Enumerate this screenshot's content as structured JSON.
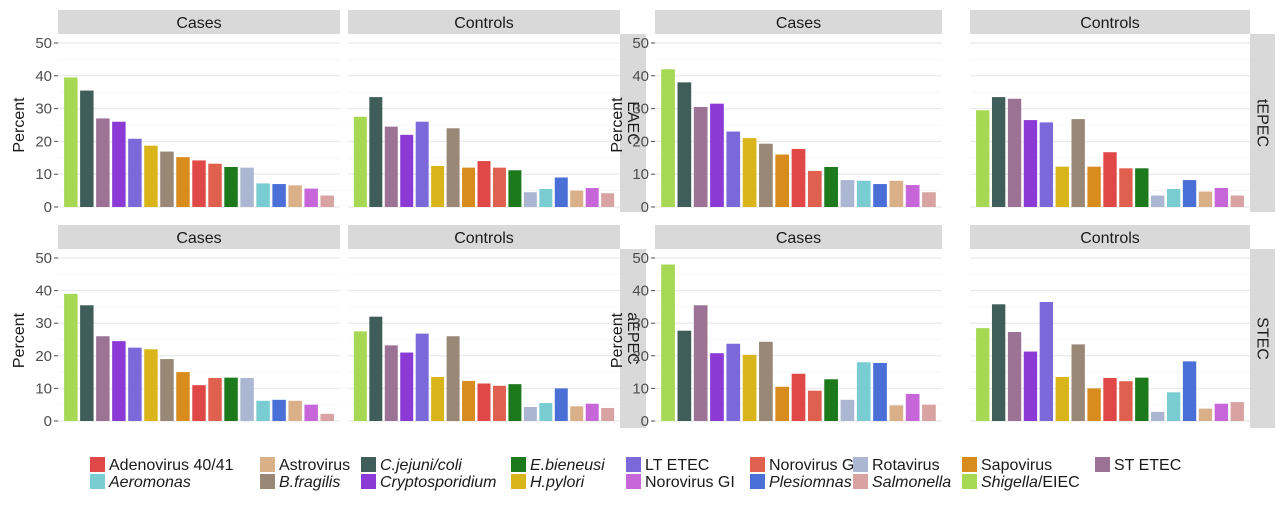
{
  "chart_data": {
    "type": "bar",
    "ylabel": "Percent",
    "ylim": [
      0,
      52
    ],
    "yticks": [
      0,
      10,
      20,
      30,
      40,
      50
    ],
    "grid": true,
    "legend_position": "bottom",
    "panel_columns": [
      "Cases",
      "Controls"
    ],
    "pathogens": [
      {
        "name": "Shigella/EIEC",
        "parts": [
          {
            "text": "Shigella",
            "italic": true
          },
          {
            "text": "/EIEC",
            "italic": false
          }
        ],
        "color": "#a6d854"
      },
      {
        "name": "C.jejuni/coli",
        "parts": [
          {
            "text": "C.jejuni/coli",
            "italic": true
          }
        ],
        "color": "#3f5e5a"
      },
      {
        "name": "ST ETEC",
        "parts": [
          {
            "text": "ST ETEC",
            "italic": false
          }
        ],
        "color": "#9c7295"
      },
      {
        "name": "Cryptosporidium",
        "parts": [
          {
            "text": "Cryptosporidium",
            "italic": true
          }
        ],
        "color": "#8b3ad6"
      },
      {
        "name": "LT ETEC",
        "parts": [
          {
            "text": "LT ETEC",
            "italic": false
          }
        ],
        "color": "#7b68d9"
      },
      {
        "name": "H.pylori",
        "parts": [
          {
            "text": "H.pylori",
            "italic": true
          }
        ],
        "color": "#d9b51b"
      },
      {
        "name": "B.fragilis",
        "parts": [
          {
            "text": "B.fragilis",
            "italic": true
          }
        ],
        "color": "#998876"
      },
      {
        "name": "Sapovirus",
        "parts": [
          {
            "text": "Sapovirus",
            "italic": false
          }
        ],
        "color": "#d98c1e"
      },
      {
        "name": "Adenovirus 40/41",
        "parts": [
          {
            "text": "Adenovirus 40/41",
            "italic": false
          }
        ],
        "color": "#e04848"
      },
      {
        "name": "Norovirus GII",
        "parts": [
          {
            "text": "Norovirus GII",
            "italic": false
          }
        ],
        "color": "#e06050"
      },
      {
        "name": "E.bieneusi",
        "parts": [
          {
            "text": "E.bieneusi",
            "italic": true
          }
        ],
        "color": "#1c7a1c"
      },
      {
        "name": "Rotavirus",
        "parts": [
          {
            "text": "Rotavirus",
            "italic": false
          }
        ],
        "color": "#aab6d2"
      },
      {
        "name": "Aeromonas",
        "parts": [
          {
            "text": "Aeromonas",
            "italic": true
          }
        ],
        "color": "#78ccd2"
      },
      {
        "name": "Plesiomnas",
        "parts": [
          {
            "text": "Plesiomnas",
            "italic": true
          }
        ],
        "color": "#4a6fd6"
      },
      {
        "name": "Astrovirus",
        "parts": [
          {
            "text": "Astrovirus",
            "italic": false
          }
        ],
        "color": "#d9b088"
      },
      {
        "name": "Norovirus GI",
        "parts": [
          {
            "text": "Norovirus GI",
            "italic": false
          }
        ],
        "color": "#c666d9"
      },
      {
        "name": "Salmonella",
        "parts": [
          {
            "text": "Salmonella",
            "italic": true
          }
        ],
        "color": "#d9a3a3"
      }
    ],
    "legend_order": [
      "Adenovirus 40/41",
      "Astrovirus",
      "C.jejuni/coli",
      "E.bieneusi",
      "LT ETEC",
      "Norovirus GII",
      "Rotavirus",
      "Sapovirus",
      "ST ETEC",
      "Aeromonas",
      "B.fragilis",
      "Cryptosporidium",
      "H.pylori",
      "Norovirus GI",
      "Plesiomnas",
      "Salmonella",
      "Shigella/EIEC"
    ],
    "panels": [
      {
        "row": "EAEC",
        "column": "Cases",
        "values": [
          39.5,
          35.5,
          27,
          26,
          20.8,
          18.7,
          16.9,
          15.2,
          14.2,
          13.2,
          12.2,
          12,
          7.2,
          7,
          6.6,
          5.6,
          3.5
        ]
      },
      {
        "row": "EAEC",
        "column": "Controls",
        "values": [
          27.5,
          33.5,
          24.5,
          22,
          26,
          12.5,
          24,
          12,
          14,
          12,
          11.2,
          4.5,
          5.5,
          9,
          5,
          5.8,
          4.2
        ]
      },
      {
        "row": "tEPEC",
        "column": "Cases",
        "values": [
          42,
          38,
          30.5,
          31.5,
          23,
          21,
          19.3,
          16,
          17.7,
          11,
          12.2,
          8.2,
          8,
          7,
          8,
          6.7,
          4.5
        ]
      },
      {
        "row": "tEPEC",
        "column": "Controls",
        "values": [
          29.5,
          33.5,
          33,
          26.5,
          25.8,
          12.3,
          26.8,
          12.3,
          16.7,
          11.8,
          11.8,
          3.5,
          5.5,
          8.2,
          4.7,
          5.8,
          3.5
        ]
      },
      {
        "row": "aEPEC",
        "column": "Cases",
        "values": [
          39,
          35.5,
          26,
          24.5,
          22.5,
          22,
          19,
          15,
          11,
          13.2,
          13.3,
          13.2,
          6.2,
          6.5,
          6.2,
          5,
          2.2
        ]
      },
      {
        "row": "aEPEC",
        "column": "Controls",
        "values": [
          27.5,
          32,
          23.2,
          21,
          26.8,
          13.5,
          26,
          12.3,
          11.5,
          10.8,
          11.3,
          4.3,
          5.5,
          10,
          4.5,
          5.3,
          4
        ]
      },
      {
        "row": "STEC",
        "column": "Cases",
        "values": [
          48,
          27.7,
          35.5,
          20.8,
          23.7,
          20.3,
          24.3,
          10.5,
          14.5,
          9.3,
          12.8,
          6.5,
          18,
          17.8,
          4.8,
          8.3,
          5
        ]
      },
      {
        "row": "STEC",
        "column": "Controls",
        "values": [
          28.5,
          35.8,
          27.3,
          21.3,
          36.5,
          13.5,
          23.5,
          10,
          13.2,
          12.2,
          13.3,
          2.8,
          8.8,
          18.3,
          3.8,
          5.3,
          5.8
        ]
      }
    ]
  }
}
